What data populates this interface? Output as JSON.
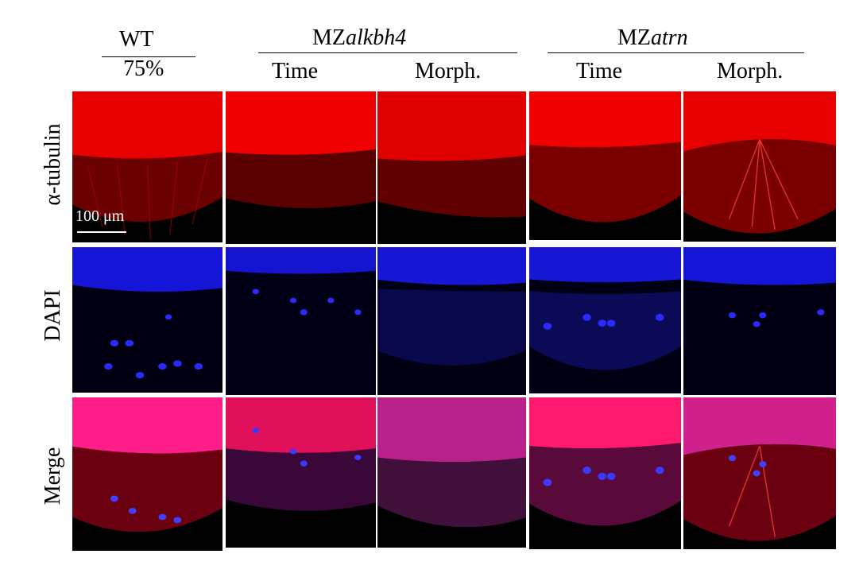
{
  "header": {
    "wt": "WT",
    "wt_stage": "75%",
    "group1_prefix": "MZ",
    "group1_gene": "alkbh4",
    "group2_prefix": "MZ",
    "group2_gene": "atrn",
    "time": "Time",
    "morph": "Morph."
  },
  "rows": {
    "tubulin": "α-tubulin",
    "dapi": "DAPI",
    "merge": "Merge"
  },
  "scale": {
    "label": "100 μm"
  },
  "colors": {
    "tubulin": "#ff0000",
    "dapi": "#0000ff",
    "merge_overlay": "#ff33aa",
    "background": "#000000"
  }
}
